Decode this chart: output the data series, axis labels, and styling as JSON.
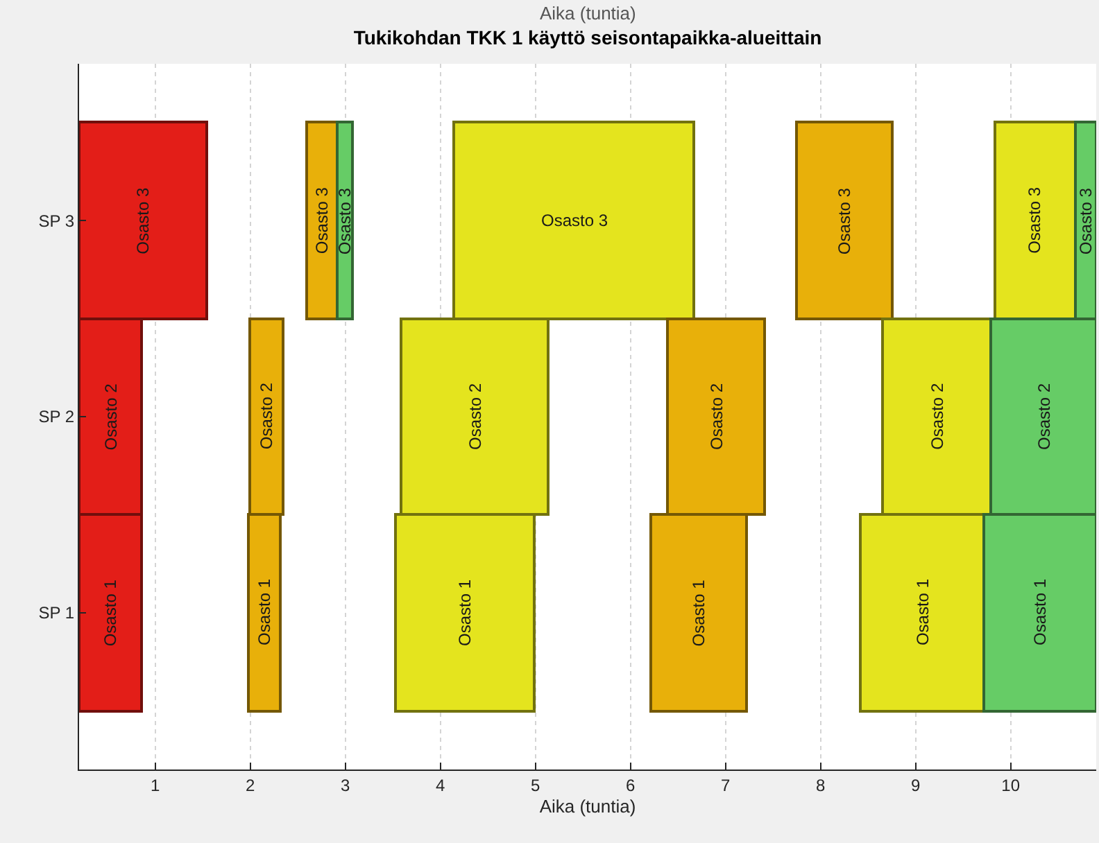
{
  "chart_data": {
    "type": "bar",
    "orientation": "horizontal",
    "title": "Tukikohdan TKK 1 käyttö seisontapaikka-alueittain",
    "xlabel": "Aika (tuntia)",
    "annotations": [
      "Aika (tuntia)"
    ],
    "categories": [
      "SP 3",
      "SP 2",
      "SP 1"
    ],
    "xlim": [
      0.2,
      10.9
    ],
    "xticks": [
      1,
      2,
      3,
      4,
      5,
      6,
      7,
      8,
      9,
      10
    ],
    "grid": "x",
    "series": [
      {
        "color": "#e31e18",
        "base": [
          0.2,
          0.2,
          0.2
        ],
        "values": [
          1.35,
          0.65,
          0.65
        ],
        "value_labels": [
          "Osasto 3",
          "Osasto 2",
          "Osasto 1"
        ]
      },
      {
        "color": "#e8b00a",
        "base": [
          2.59,
          1.99,
          1.98
        ],
        "values": [
          0.33,
          0.35,
          0.34
        ],
        "value_labels": [
          "Osasto 3",
          "Osasto 2",
          "Osasto 1"
        ]
      },
      {
        "color": "#66cc66",
        "base": [
          2.92,
          null,
          null
        ],
        "values": [
          0.15,
          null,
          null
        ],
        "value_labels": [
          "Osasto 3",
          null,
          null
        ]
      },
      {
        "color": "#e4e41e",
        "base": [
          4.14,
          3.58,
          3.53
        ],
        "values": [
          2.53,
          1.56,
          1.46
        ],
        "value_labels": [
          "Osasto 3",
          "Osasto 2",
          "Osasto 1"
        ]
      },
      {
        "color": "#e8b00a",
        "base": [
          7.74,
          6.39,
          6.21
        ],
        "values": [
          1.02,
          1.02,
          1.01
        ],
        "value_labels": [
          "Osasto 3",
          "Osasto 2",
          "Osasto 1"
        ]
      },
      {
        "color": "#e4e41e",
        "base": [
          9.83,
          8.65,
          8.42
        ],
        "values": [
          0.85,
          1.14,
          1.3
        ],
        "value_labels": [
          "Osasto 3",
          "Osasto 2",
          "Osasto 1"
        ]
      },
      {
        "color": "#66cc66",
        "base": [
          10.68,
          9.79,
          9.72
        ],
        "values": [
          0.22,
          1.11,
          1.18
        ],
        "value_labels": [
          "Osasto 3",
          "Osasto 2",
          "Osasto 1"
        ]
      }
    ]
  }
}
